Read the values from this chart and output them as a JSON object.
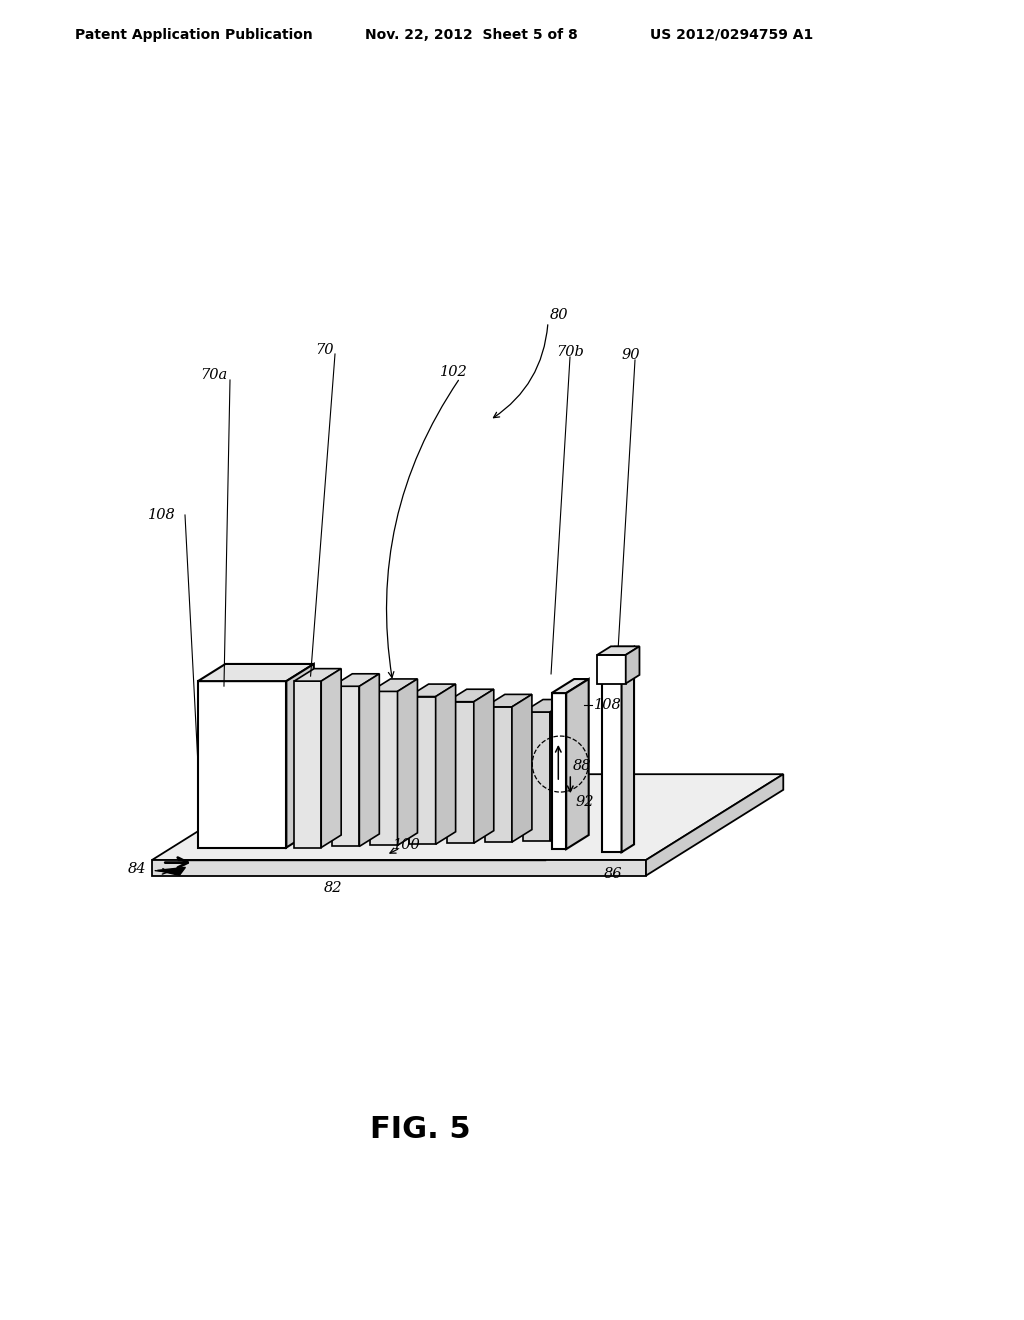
{
  "header_left": "Patent Application Publication",
  "header_mid": "Nov. 22, 2012  Sheet 5 of 8",
  "header_right": "US 2012/0294759 A1",
  "fig_label": "FIG. 5",
  "bg_color": "#ffffff",
  "line_color": "#000000",
  "platform_top_color": "#eeeeee",
  "platform_front_color": "#dddddd",
  "slab_front_color": "#ffffff",
  "slab_top_color": "#e8e8e8",
  "slab_side_color": "#d0d0d0",
  "post_front_color": "#f0f0f0",
  "post_side_color": "#d5d5d5"
}
